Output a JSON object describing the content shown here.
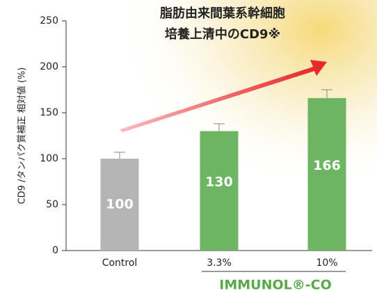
{
  "chart_data": {
    "type": "bar",
    "title": [
      "脂肪由来間葉系幹細胞",
      "培養上清中のCD9※"
    ],
    "y_label": "CD9 /タンパク質補正 相対値 (%)",
    "categories": [
      "Control",
      "3.3%",
      "10%"
    ],
    "values": [
      100,
      130,
      166
    ],
    "errors": [
      7,
      8,
      9
    ],
    "colors": [
      "#b5b5b5",
      "#6db562",
      "#6db562"
    ],
    "group_label": "IMMUNOL®-CO",
    "group_color": "#5aa84a",
    "ylim": [
      0,
      250
    ],
    "yticks": [
      0,
      50,
      100,
      150,
      200,
      250
    ]
  }
}
